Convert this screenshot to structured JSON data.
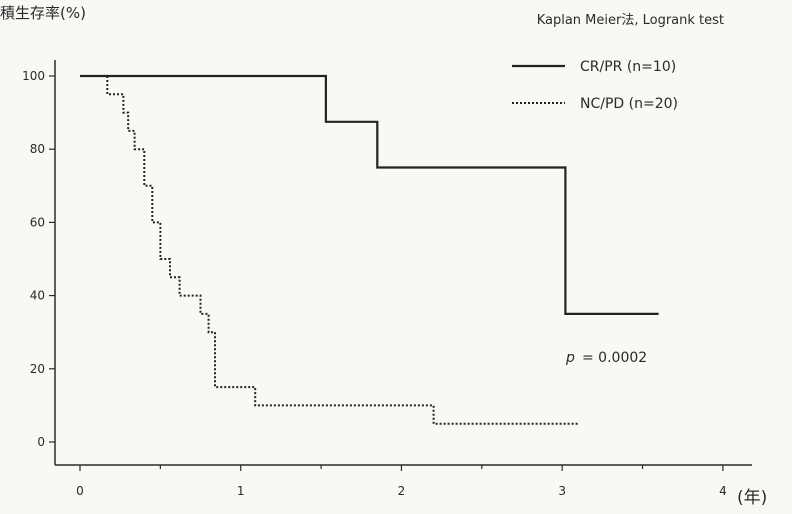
{
  "chart_data": {
    "type": "line",
    "ylabel": "積生存率(%)",
    "xlabel": "(年)",
    "annotation": "Kaplan Meier法, Logrank test",
    "p_label": "p",
    "p_value_text": "= 0.0002",
    "xlim": [
      0,
      4.15
    ],
    "ylim": [
      0,
      100
    ],
    "x_ticks": [
      0,
      1,
      2,
      3,
      4
    ],
    "x_ticklabels": [
      "0",
      "1",
      "2",
      "3",
      "4"
    ],
    "y_ticks": [
      0,
      20,
      40,
      60,
      80,
      100
    ],
    "y_ticklabels": [
      "0",
      "20",
      "40",
      "60",
      "80",
      "100"
    ],
    "legend_position": "top-right",
    "series": [
      {
        "name": "CR/PR (n=10)",
        "style": "solid",
        "x": [
          0,
          1.53,
          1.53,
          1.85,
          1.85,
          3.02,
          3.02,
          3.6
        ],
        "y": [
          100,
          100,
          87.5,
          87.5,
          75,
          75,
          35,
          35
        ]
      },
      {
        "name": "NC/PD (n=20)",
        "style": "dotted",
        "x": [
          0.17,
          0.17,
          0.27,
          0.27,
          0.3,
          0.3,
          0.34,
          0.34,
          0.4,
          0.4,
          0.45,
          0.45,
          0.5,
          0.5,
          0.56,
          0.56,
          0.62,
          0.62,
          0.75,
          0.75,
          0.8,
          0.8,
          0.84,
          0.84,
          1.09,
          1.09,
          2.2,
          2.2,
          3.1
        ],
        "y": [
          100,
          95,
          95,
          90,
          90,
          85,
          85,
          80,
          80,
          70,
          70,
          60,
          60,
          50,
          50,
          45,
          45,
          40,
          40,
          35,
          35,
          30,
          30,
          15,
          15,
          10,
          10,
          5,
          5
        ]
      }
    ]
  }
}
